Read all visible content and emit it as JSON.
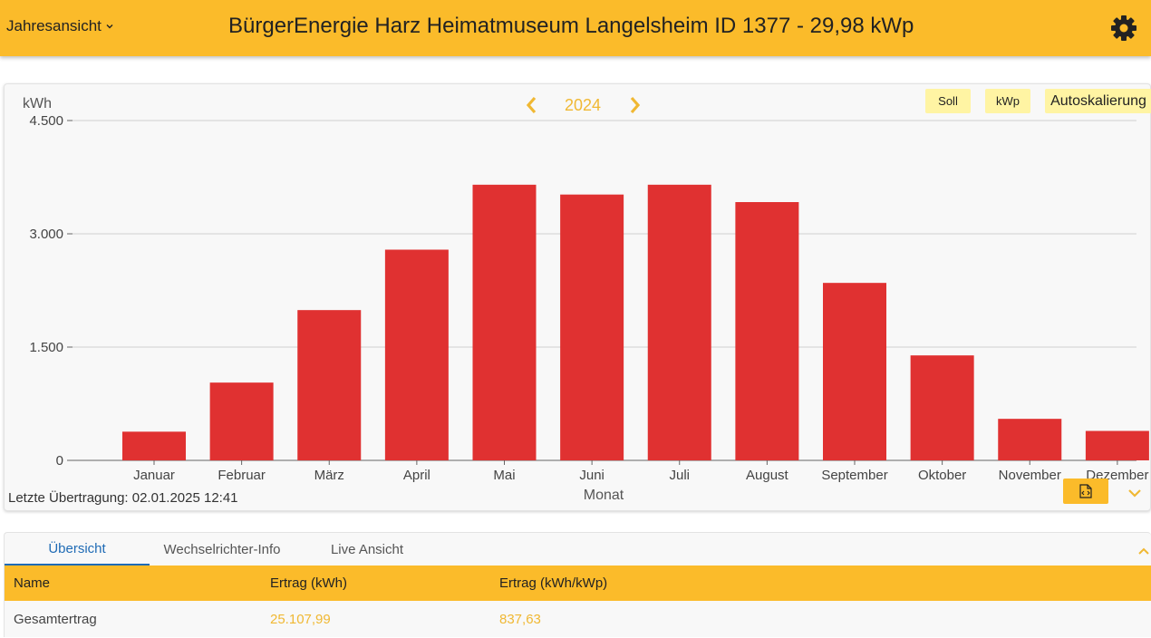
{
  "header": {
    "view_select": "Jahresansicht",
    "title": "BürgerEnergie Harz Heimatmuseum Langelsheim ID 1377 - 29,98 kWp",
    "icons": {
      "dropdown": "chevron-down-icon",
      "settings": "gear-icon"
    }
  },
  "chart_panel": {
    "year": "2024",
    "buttons": {
      "soll": "Soll",
      "kwp": "kWp",
      "autoscale": "Autoskalierung"
    },
    "last_transfer": "Letzte Übertragung: 02.01.2025 12:41",
    "icons": {
      "prev": "chevron-left-icon",
      "next": "chevron-right-icon",
      "export": "file-code-icon",
      "collapse": "chevron-down-icon"
    }
  },
  "chart_data": {
    "type": "bar",
    "title": "",
    "xlabel": "Monat",
    "ylabel": "kWh",
    "ylim": [
      0,
      4500
    ],
    "yticks": [
      0,
      1500,
      3000,
      4500
    ],
    "ytick_labels": [
      "0",
      "1.500",
      "3.000",
      "4.500"
    ],
    "grid": true,
    "bar_color": "#e03131",
    "categories": [
      "Januar",
      "Februar",
      "März",
      "April",
      "Mai",
      "Juni",
      "Juli",
      "August",
      "September",
      "Oktober",
      "November",
      "Dezember"
    ],
    "values": [
      380,
      1030,
      1990,
      2790,
      3650,
      3520,
      3650,
      3420,
      2350,
      1390,
      550,
      390
    ]
  },
  "overview": {
    "tabs": [
      "Übersicht",
      "Wechselrichter-Info",
      "Live Ansicht"
    ],
    "columns": [
      "Name",
      "Ertrag (kWh)",
      "Ertrag (kWh/kWp)"
    ],
    "rows": [
      {
        "name": "Gesamtertrag",
        "yield_kwh": "25.107,99",
        "yield_kwh_kwp": "837,63"
      }
    ]
  },
  "colors": {
    "accent": "#fbbb2a",
    "highlight": "#fff4a3",
    "bar": "#e03131",
    "tab_active": "#1f6bb5",
    "value": "#f0b833"
  }
}
